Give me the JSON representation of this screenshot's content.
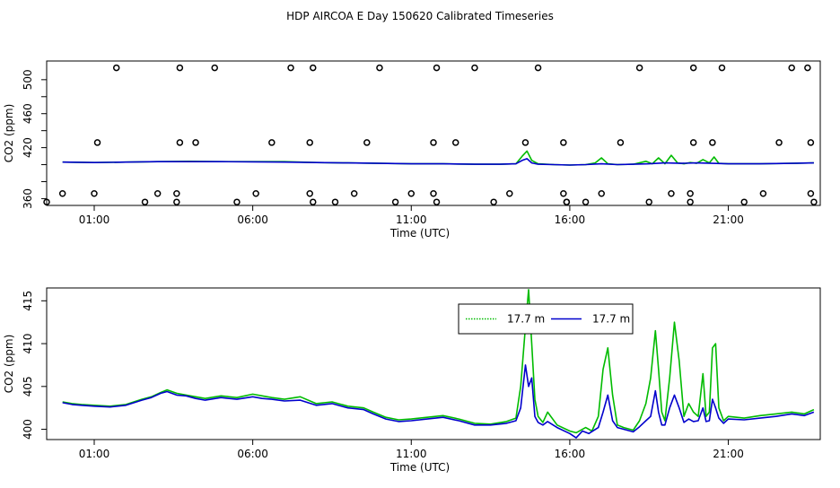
{
  "title": "HDP AIRCOA E  Day 150620  Calibrated Timeseries",
  "chart_data": [
    {
      "type": "line",
      "ylabel": "CO2 (ppm)",
      "xlabel": "Time (UTC)",
      "xlim": [
        -0.5,
        23.9
      ],
      "ylim": [
        352,
        522
      ],
      "yticks": [
        360,
        380,
        400,
        420,
        440,
        460,
        480,
        500
      ],
      "ytick_labels": [
        "360",
        "",
        "",
        "420",
        "",
        "460",
        "",
        "500"
      ],
      "xticks": [
        1,
        6,
        11,
        16,
        21
      ],
      "xtick_labels": [
        "01:00",
        "06:00",
        "11:00",
        "16:00",
        "21:00"
      ],
      "series": [
        {
          "color": "#00bb00",
          "x": [
            0.0,
            1.0,
            2.0,
            3.0,
            4.0,
            5.0,
            6.0,
            7.0,
            8.0,
            9.0,
            10.0,
            11.0,
            12.0,
            13.0,
            13.8,
            14.3,
            14.5,
            14.65,
            14.8,
            15.0,
            15.5,
            16.0,
            16.5,
            16.8,
            17.0,
            17.2,
            17.5,
            18.0,
            18.4,
            18.6,
            18.8,
            19.0,
            19.2,
            19.4,
            19.6,
            19.8,
            20.0,
            20.2,
            20.4,
            20.55,
            20.7,
            21.0,
            22.0,
            23.0,
            23.7
          ],
          "y": [
            403,
            402.5,
            403,
            403.5,
            404,
            403.5,
            403.5,
            403.5,
            402.5,
            402,
            401.5,
            401,
            401,
            400.5,
            400.5,
            401,
            410,
            416,
            405,
            401,
            400,
            399.5,
            400,
            402,
            408,
            401,
            400,
            400.5,
            404,
            401,
            408,
            401,
            411,
            402,
            401,
            402.5,
            401.5,
            406,
            402,
            409,
            401.5,
            401,
            401,
            401.5,
            402
          ]
        },
        {
          "color": "#0000cc",
          "x": [
            0.0,
            1.0,
            2.0,
            3.0,
            4.0,
            5.0,
            6.0,
            7.0,
            8.0,
            9.0,
            10.0,
            11.0,
            12.0,
            13.0,
            13.8,
            14.3,
            14.5,
            14.65,
            14.8,
            15.0,
            15.5,
            16.0,
            16.5,
            17.0,
            17.5,
            18.0,
            18.5,
            19.0,
            19.5,
            20.0,
            20.5,
            21.0,
            22.0,
            23.0,
            23.7
          ],
          "y": [
            403,
            402.5,
            403,
            403.5,
            403.5,
            403.5,
            403.3,
            403,
            402.5,
            402,
            401.5,
            401,
            401,
            400.5,
            400.5,
            401,
            405,
            407,
            402,
            400.5,
            400,
            399.5,
            400,
            401,
            400,
            400.5,
            401,
            402,
            401.5,
            402,
            401.5,
            401,
            401,
            401.5,
            402
          ]
        }
      ],
      "points": {
        "x": [
          -0.5,
          0.0,
          1.0,
          1.1,
          1.7,
          2.6,
          3.0,
          3.6,
          3.6,
          3.7,
          3.7,
          4.2,
          4.8,
          5.5,
          6.1,
          6.6,
          7.2,
          7.8,
          7.8,
          7.9,
          7.9,
          8.6,
          9.2,
          9.6,
          10.0,
          10.5,
          11.0,
          11.7,
          11.7,
          11.8,
          11.8,
          12.4,
          13.0,
          13.6,
          14.1,
          14.6,
          15.0,
          15.8,
          15.8,
          15.9,
          15.9,
          16.5,
          17.0,
          17.6,
          18.2,
          18.5,
          19.2,
          19.8,
          19.8,
          19.9,
          19.9,
          20.5,
          20.8,
          21.5,
          22.1,
          22.6,
          23.0,
          23.5,
          23.6,
          23.6,
          23.7
        ],
        "y": [
          356,
          366,
          366,
          426,
          514,
          356,
          366,
          356,
          366,
          426,
          514,
          426,
          514,
          356,
          366,
          426,
          514,
          366,
          426,
          356,
          514,
          356,
          366,
          426,
          514,
          356,
          366,
          366,
          426,
          356,
          514,
          426,
          514,
          356,
          366,
          426,
          514,
          426,
          366,
          356,
          356,
          356,
          366,
          426,
          514,
          356,
          366,
          366,
          356,
          426,
          514,
          426,
          514,
          356,
          366,
          426,
          514,
          514,
          366,
          426,
          356
        ]
      }
    },
    {
      "type": "line",
      "ylabel": "CO2 (ppm)",
      "xlabel": "Time (UTC)",
      "xlim": [
        -0.5,
        23.9
      ],
      "ylim": [
        398.8,
        416.5
      ],
      "yticks": [
        400,
        405,
        410,
        415
      ],
      "ytick_labels": [
        "400",
        "405",
        "410",
        "415"
      ],
      "xticks": [
        1,
        6,
        11,
        16,
        21
      ],
      "xtick_labels": [
        "01:00",
        "06:00",
        "11:00",
        "16:00",
        "21:00"
      ],
      "legend": {
        "placement": "top-right-inner",
        "entries": [
          {
            "label": "17.7 m",
            "color": "#00bb00",
            "style": "dotted"
          },
          {
            "label": "17.7 m",
            "color": "#0000cc",
            "style": "solid"
          }
        ]
      },
      "series": [
        {
          "color": "#00bb00",
          "x": [
            0.0,
            0.3,
            0.6,
            1.0,
            1.5,
            2.0,
            2.5,
            2.8,
            3.1,
            3.3,
            3.6,
            3.9,
            4.2,
            4.5,
            5.0,
            5.5,
            6.0,
            6.3,
            6.6,
            7.0,
            7.5,
            8.0,
            8.5,
            9.0,
            9.5,
            9.8,
            10.2,
            10.6,
            11.0,
            11.5,
            12.0,
            12.5,
            13.0,
            13.5,
            14.0,
            14.3,
            14.45,
            14.6,
            14.7,
            14.8,
            14.9,
            15.0,
            15.15,
            15.3,
            15.6,
            16.0,
            16.2,
            16.5,
            16.7,
            16.9,
            17.05,
            17.2,
            17.35,
            17.5,
            17.7,
            18.0,
            18.2,
            18.4,
            18.55,
            18.7,
            18.8,
            18.9,
            19.0,
            19.15,
            19.3,
            19.45,
            19.6,
            19.75,
            19.9,
            20.05,
            20.2,
            20.3,
            20.4,
            20.5,
            20.6,
            20.7,
            20.85,
            21.0,
            21.5,
            22.0,
            22.5,
            23.0,
            23.4,
            23.7
          ],
          "y": [
            403.2,
            403.0,
            402.9,
            402.8,
            402.7,
            402.9,
            403.5,
            403.8,
            404.3,
            404.6,
            404.2,
            404.0,
            403.8,
            403.6,
            403.9,
            403.7,
            404.1,
            403.9,
            403.7,
            403.5,
            403.8,
            403.0,
            403.2,
            402.7,
            402.5,
            402.0,
            401.4,
            401.1,
            401.2,
            401.4,
            401.6,
            401.2,
            400.7,
            400.6,
            400.9,
            401.3,
            405.0,
            412.0,
            416.3,
            410.0,
            403.5,
            401.5,
            400.8,
            402.0,
            400.5,
            399.8,
            399.6,
            400.2,
            399.8,
            401.5,
            407.0,
            409.5,
            404.0,
            400.5,
            400.2,
            399.9,
            401.0,
            403.0,
            406.0,
            411.5,
            407.0,
            402.0,
            401.0,
            406.0,
            412.5,
            408.0,
            401.5,
            403.0,
            402.0,
            401.5,
            406.5,
            401.5,
            402.0,
            409.5,
            410.0,
            402.5,
            401.0,
            401.5,
            401.3,
            401.6,
            401.8,
            402.0,
            401.8,
            402.3
          ]
        },
        {
          "color": "#0000cc",
          "x": [
            0.0,
            0.3,
            0.6,
            1.0,
            1.5,
            2.0,
            2.5,
            2.8,
            3.1,
            3.3,
            3.6,
            3.9,
            4.2,
            4.5,
            5.0,
            5.5,
            6.0,
            6.3,
            6.6,
            7.0,
            7.5,
            8.0,
            8.5,
            9.0,
            9.5,
            9.8,
            10.2,
            10.6,
            11.0,
            11.5,
            12.0,
            12.5,
            13.0,
            13.5,
            14.0,
            14.3,
            14.45,
            14.6,
            14.7,
            14.8,
            14.9,
            15.0,
            15.15,
            15.3,
            15.6,
            16.0,
            16.2,
            16.4,
            16.6,
            16.9,
            17.05,
            17.2,
            17.35,
            17.5,
            17.7,
            18.0,
            18.2,
            18.4,
            18.55,
            18.7,
            18.8,
            18.9,
            19.0,
            19.15,
            19.3,
            19.45,
            19.6,
            19.75,
            19.9,
            20.05,
            20.2,
            20.3,
            20.4,
            20.5,
            20.6,
            20.7,
            20.85,
            21.0,
            21.5,
            22.0,
            22.5,
            23.0,
            23.4,
            23.7
          ],
          "y": [
            403.1,
            402.9,
            402.8,
            402.7,
            402.6,
            402.8,
            403.4,
            403.7,
            404.2,
            404.4,
            404.0,
            403.9,
            403.6,
            403.4,
            403.7,
            403.5,
            403.8,
            403.6,
            403.5,
            403.3,
            403.4,
            402.8,
            403.0,
            402.5,
            402.3,
            401.8,
            401.2,
            400.9,
            401.0,
            401.2,
            401.4,
            401.0,
            400.5,
            400.5,
            400.7,
            401.0,
            402.5,
            407.5,
            405.0,
            406.0,
            401.5,
            400.8,
            400.5,
            400.9,
            400.2,
            399.5,
            399.0,
            399.8,
            399.5,
            400.2,
            402.0,
            404.0,
            401.0,
            400.2,
            400.0,
            399.7,
            400.3,
            401.0,
            401.5,
            404.5,
            402.0,
            400.5,
            400.5,
            402.5,
            404.0,
            402.5,
            400.8,
            401.2,
            400.9,
            401.0,
            402.5,
            400.9,
            401.0,
            403.5,
            402.5,
            401.3,
            400.7,
            401.2,
            401.1,
            401.3,
            401.5,
            401.8,
            401.6,
            402.0
          ]
        }
      ]
    }
  ]
}
